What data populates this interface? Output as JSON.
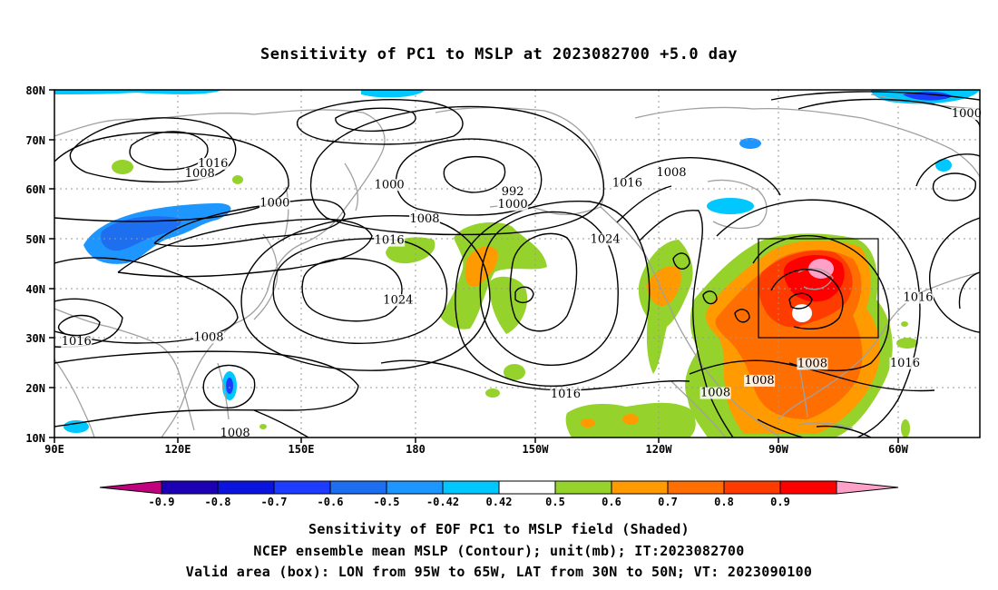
{
  "title": "Sensitivity of PC1 to MSLP at 2023082700 +5.0 day",
  "axes": {
    "lat_labels": [
      "80N",
      "70N",
      "60N",
      "50N",
      "40N",
      "30N",
      "20N",
      "10N"
    ],
    "lon_labels": [
      "90E",
      "120E",
      "150E",
      "180",
      "150W",
      "120W",
      "90W",
      "60W"
    ]
  },
  "contour_labels": [
    {
      "text": "1016",
      "lon": 126,
      "lat": 64.5
    },
    {
      "text": "1008",
      "lon": 123,
      "lat": 62.5
    },
    {
      "text": "1000",
      "lon": 140,
      "lat": 56.5
    },
    {
      "text": "1000",
      "lon": 166,
      "lat": 60.2
    },
    {
      "text": "1008",
      "lon": 174,
      "lat": 53.3
    },
    {
      "text": "1016",
      "lon": 166,
      "lat": 49.0
    },
    {
      "text": "1024",
      "lon": 168,
      "lat": 37.0
    },
    {
      "text": "1008",
      "lon": 125,
      "lat": 29.5
    },
    {
      "text": "1016",
      "lon": 95,
      "lat": 28.6
    },
    {
      "text": "1008",
      "lon": 131,
      "lat": 10.2
    },
    {
      "text": "992",
      "lon": 194,
      "lat": 58.8
    },
    {
      "text": "1000",
      "lon": 194,
      "lat": 56.2
    },
    {
      "text": "1016",
      "lon": 220,
      "lat": 60.5
    },
    {
      "text": "1008",
      "lon": 230,
      "lat": 62.6
    },
    {
      "text": "1024",
      "lon": 215,
      "lat": 49.2
    },
    {
      "text": "1016",
      "lon": 206,
      "lat": 18.0
    },
    {
      "text": "1008",
      "lon": 240,
      "lat": 18.3
    },
    {
      "text": "1008",
      "lon": 250,
      "lat": 20.8
    },
    {
      "text": "1008",
      "lon": 262,
      "lat": 24.2
    },
    {
      "text": "1016",
      "lon": 286,
      "lat": 37.5
    },
    {
      "text": "1016",
      "lon": 283,
      "lat": 24.3
    },
    {
      "text": "1000",
      "lon": 297,
      "lat": 74.5
    }
  ],
  "colorbar": {
    "tick_labels": [
      "-0.9",
      "-0.8",
      "-0.7",
      "-0.6",
      "-0.5",
      "-0.42",
      "0.42",
      "0.5",
      "0.6",
      "0.7",
      "0.8",
      "0.9"
    ],
    "colors": [
      "#c0007c",
      "#1e00b4",
      "#0a14dc",
      "#1e3cff",
      "#1e6ef0",
      "#1e96ff",
      "#00c8ff",
      "#ffffff",
      "#96d22c",
      "#ff9b00",
      "#ff6e00",
      "#ff3c00",
      "#ff0000",
      "#ffa0c8"
    ]
  },
  "footer": {
    "line1": "Sensitivity of EOF PC1 to MSLP field (Shaded)",
    "line2": "NCEP ensemble mean MSLP (Contour); unit(mb); IT:2023082700",
    "line3": "Valid area (box): LON from 95W to 65W, LAT from 30N to 50N; VT: 2023090100"
  }
}
